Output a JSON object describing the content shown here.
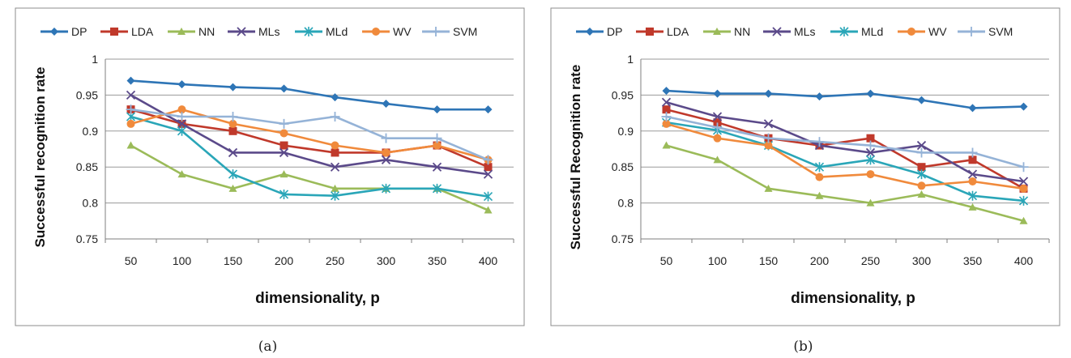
{
  "series_styles": [
    {
      "name": "DP",
      "color": "#2e75b6",
      "marker": "diamond"
    },
    {
      "name": "LDA",
      "color": "#c0392b",
      "marker": "square"
    },
    {
      "name": "NN",
      "color": "#9bbb59",
      "marker": "triangle"
    },
    {
      "name": "MLs",
      "color": "#5b4a8a",
      "marker": "x"
    },
    {
      "name": "MLd",
      "color": "#2aa6b8",
      "marker": "asterisk"
    },
    {
      "name": "WV",
      "color": "#f08a3c",
      "marker": "circle"
    },
    {
      "name": "SVM",
      "color": "#95b3d7",
      "marker": "plus"
    }
  ],
  "chart_data": [
    {
      "type": "line",
      "caption": "(a)",
      "xlabel": "dimensionality, p",
      "ylabel": "Successful recognition rate",
      "categories": [
        "50",
        "100",
        "150",
        "200",
        "250",
        "300",
        "350",
        "400"
      ],
      "ylim": [
        0.75,
        1
      ],
      "yticks": [
        "0.75",
        "0.8",
        "0.85",
        "0.9",
        "0.95",
        "1"
      ],
      "grid": true,
      "legend": "top",
      "series": [
        {
          "name": "DP",
          "values": [
            0.97,
            0.965,
            0.961,
            0.959,
            0.947,
            0.938,
            0.93,
            0.93
          ]
        },
        {
          "name": "LDA",
          "values": [
            0.93,
            0.91,
            0.9,
            0.88,
            0.87,
            0.87,
            0.88,
            0.85
          ]
        },
        {
          "name": "NN",
          "values": [
            0.88,
            0.84,
            0.82,
            0.84,
            0.82,
            0.82,
            0.82,
            0.79
          ]
        },
        {
          "name": "MLs",
          "values": [
            0.95,
            0.91,
            0.87,
            0.87,
            0.85,
            0.86,
            0.85,
            0.84
          ]
        },
        {
          "name": "MLd",
          "values": [
            0.92,
            0.9,
            0.84,
            0.812,
            0.81,
            0.82,
            0.82,
            0.809
          ]
        },
        {
          "name": "WV",
          "values": [
            0.91,
            0.93,
            0.91,
            0.897,
            0.88,
            0.87,
            0.88,
            0.86
          ]
        },
        {
          "name": "SVM",
          "values": [
            0.93,
            0.92,
            0.92,
            0.91,
            0.92,
            0.89,
            0.89,
            0.86
          ]
        }
      ]
    },
    {
      "type": "line",
      "caption": "(b)",
      "xlabel": "dimensionality, p",
      "ylabel": "Successful Recognition rate",
      "categories": [
        "50",
        "100",
        "150",
        "200",
        "250",
        "300",
        "350",
        "400"
      ],
      "ylim": [
        0.75,
        1
      ],
      "yticks": [
        "0.75",
        "0.8",
        "0.85",
        "0.9",
        "0.95",
        "1"
      ],
      "grid": true,
      "legend": "top",
      "series": [
        {
          "name": "DP",
          "values": [
            0.956,
            0.952,
            0.952,
            0.948,
            0.952,
            0.943,
            0.932,
            0.934
          ]
        },
        {
          "name": "LDA",
          "values": [
            0.93,
            0.912,
            0.89,
            0.88,
            0.89,
            0.85,
            0.86,
            0.82
          ]
        },
        {
          "name": "NN",
          "values": [
            0.88,
            0.86,
            0.82,
            0.81,
            0.8,
            0.812,
            0.794,
            0.775
          ]
        },
        {
          "name": "MLs",
          "values": [
            0.94,
            0.92,
            0.91,
            0.88,
            0.87,
            0.88,
            0.84,
            0.83
          ]
        },
        {
          "name": "MLd",
          "values": [
            0.912,
            0.901,
            0.88,
            0.85,
            0.86,
            0.84,
            0.81,
            0.803
          ]
        },
        {
          "name": "WV",
          "values": [
            0.91,
            0.89,
            0.88,
            0.836,
            0.84,
            0.824,
            0.83,
            0.82
          ]
        },
        {
          "name": "SVM",
          "values": [
            0.92,
            0.905,
            0.89,
            0.885,
            0.88,
            0.87,
            0.87,
            0.85
          ]
        }
      ]
    }
  ]
}
